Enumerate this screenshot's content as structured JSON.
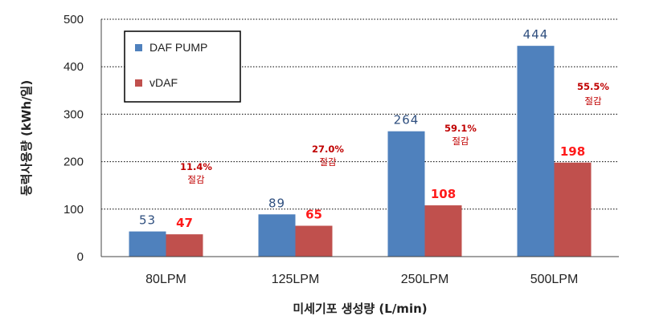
{
  "chart_data": {
    "type": "bar",
    "categories": [
      "80LPM",
      "125LPM",
      "250LPM",
      "500LPM"
    ],
    "series": [
      {
        "name": "DAF PUMP",
        "values": [
          53,
          89,
          264,
          444
        ],
        "color": "#4f81bd"
      },
      {
        "name": "vDAF",
        "values": [
          47,
          65,
          108,
          198
        ],
        "color": "#c0504d"
      }
    ],
    "xlabel": "미세기포 생성량 (L/min)",
    "ylabel": "동력사용량 (kWh/일)",
    "ylim": [
      0,
      500
    ],
    "yticks": [
      0,
      100,
      200,
      300,
      400,
      500
    ],
    "grid": true,
    "legend": "top-left",
    "annotations": [
      {
        "category": "80LPM",
        "percent": "11.4%",
        "text": "절감"
      },
      {
        "category": "125LPM",
        "percent": "27.0%",
        "text": "절감"
      },
      {
        "category": "250LPM",
        "percent": "59.1%",
        "text": "절감"
      },
      {
        "category": "500LPM",
        "percent": "55.5%",
        "text": "절감"
      }
    ]
  }
}
